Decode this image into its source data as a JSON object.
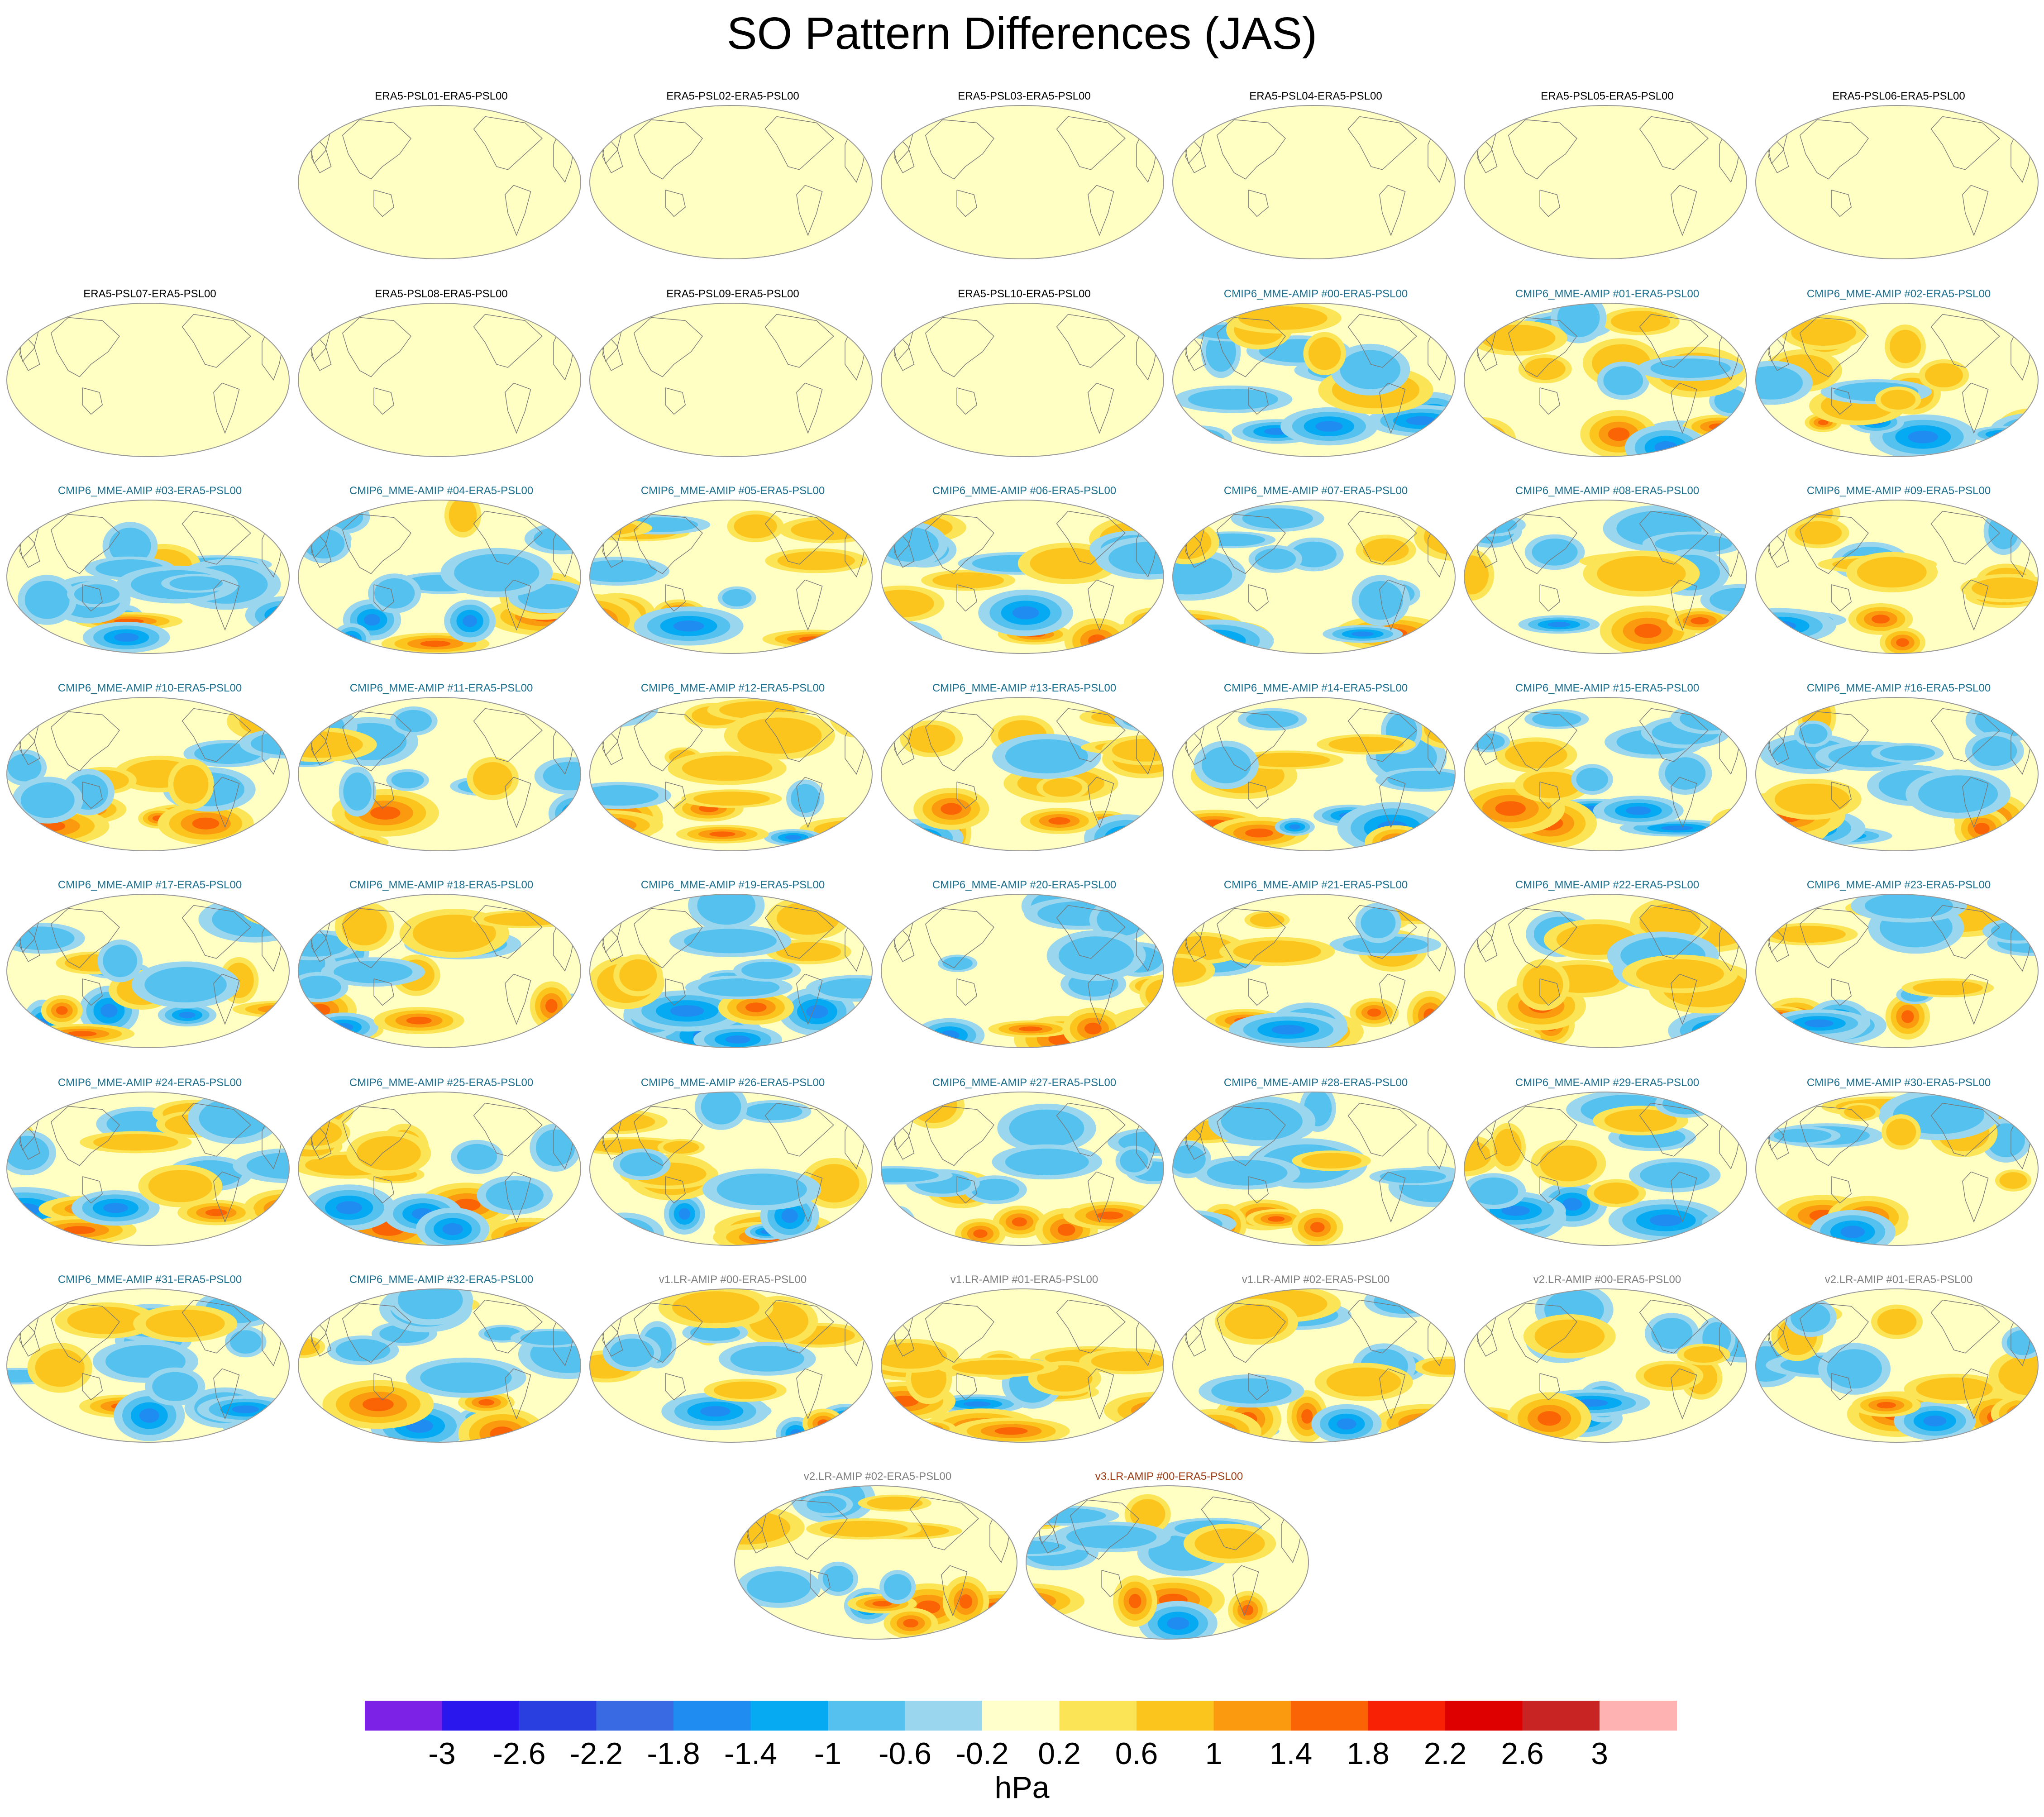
{
  "title": "SO Pattern Differences (JAS)",
  "units": "hPa",
  "colors": {
    "land_outline": "#777777",
    "map_edge": "#999999",
    "neutral_fill": "#ffffc4",
    "title_era5": "#000000",
    "title_cmip6": "#1a6e8e",
    "title_v1": "#7f7f7f",
    "title_v2": "#7f7f7f",
    "title_v3": "#9a3b12"
  },
  "colorbar": {
    "colors": [
      "#7b22e6",
      "#2a17ee",
      "#2a3fe0",
      "#3a6ae3",
      "#1f8cf2",
      "#05aaf2",
      "#55c1ee",
      "#9bd6ef",
      "#ffffcc",
      "#fce457",
      "#fbc51d",
      "#fc9a0f",
      "#fb6404",
      "#f82005",
      "#de0001",
      "#c82424",
      "#ffb2b2"
    ],
    "labels": [
      "-3",
      "-2.6",
      "-2.2",
      "-1.8",
      "-1.4",
      "-1",
      "-0.6",
      "-0.2",
      "0.2",
      "0.6",
      "1",
      "1.4",
      "1.8",
      "2.2",
      "2.6",
      "3"
    ]
  },
  "panels": [
    {
      "title": "ERA5-PSL01-ERA5-PSL00",
      "group": "era5"
    },
    {
      "title": "ERA5-PSL02-ERA5-PSL00",
      "group": "era5"
    },
    {
      "title": "ERA5-PSL03-ERA5-PSL00",
      "group": "era5"
    },
    {
      "title": "ERA5-PSL04-ERA5-PSL00",
      "group": "era5"
    },
    {
      "title": "ERA5-PSL05-ERA5-PSL00",
      "group": "era5"
    },
    {
      "title": "ERA5-PSL06-ERA5-PSL00",
      "group": "era5"
    },
    {
      "title": "ERA5-PSL07-ERA5-PSL00",
      "group": "era5"
    },
    {
      "title": "ERA5-PSL08-ERA5-PSL00",
      "group": "era5"
    },
    {
      "title": "ERA5-PSL09-ERA5-PSL00",
      "group": "era5"
    },
    {
      "title": "ERA5-PSL10-ERA5-PSL00",
      "group": "era5"
    },
    {
      "title": "CMIP6_MME-AMIP  #00-ERA5-PSL00",
      "group": "cmip6"
    },
    {
      "title": "CMIP6_MME-AMIP  #01-ERA5-PSL00",
      "group": "cmip6"
    },
    {
      "title": "CMIP6_MME-AMIP  #02-ERA5-PSL00",
      "group": "cmip6"
    },
    {
      "title": "CMIP6_MME-AMIP  #03-ERA5-PSL00",
      "group": "cmip6"
    },
    {
      "title": "CMIP6_MME-AMIP  #04-ERA5-PSL00",
      "group": "cmip6"
    },
    {
      "title": "CMIP6_MME-AMIP  #05-ERA5-PSL00",
      "group": "cmip6"
    },
    {
      "title": "CMIP6_MME-AMIP  #06-ERA5-PSL00",
      "group": "cmip6"
    },
    {
      "title": "CMIP6_MME-AMIP  #07-ERA5-PSL00",
      "group": "cmip6"
    },
    {
      "title": "CMIP6_MME-AMIP  #08-ERA5-PSL00",
      "group": "cmip6"
    },
    {
      "title": "CMIP6_MME-AMIP  #09-ERA5-PSL00",
      "group": "cmip6"
    },
    {
      "title": "CMIP6_MME-AMIP  #10-ERA5-PSL00",
      "group": "cmip6"
    },
    {
      "title": "CMIP6_MME-AMIP  #11-ERA5-PSL00",
      "group": "cmip6"
    },
    {
      "title": "CMIP6_MME-AMIP  #12-ERA5-PSL00",
      "group": "cmip6"
    },
    {
      "title": "CMIP6_MME-AMIP  #13-ERA5-PSL00",
      "group": "cmip6"
    },
    {
      "title": "CMIP6_MME-AMIP  #14-ERA5-PSL00",
      "group": "cmip6"
    },
    {
      "title": "CMIP6_MME-AMIP  #15-ERA5-PSL00",
      "group": "cmip6"
    },
    {
      "title": "CMIP6_MME-AMIP  #16-ERA5-PSL00",
      "group": "cmip6"
    },
    {
      "title": "CMIP6_MME-AMIP  #17-ERA5-PSL00",
      "group": "cmip6"
    },
    {
      "title": "CMIP6_MME-AMIP  #18-ERA5-PSL00",
      "group": "cmip6"
    },
    {
      "title": "CMIP6_MME-AMIP  #19-ERA5-PSL00",
      "group": "cmip6"
    },
    {
      "title": "CMIP6_MME-AMIP  #20-ERA5-PSL00",
      "group": "cmip6"
    },
    {
      "title": "CMIP6_MME-AMIP  #21-ERA5-PSL00",
      "group": "cmip6"
    },
    {
      "title": "CMIP6_MME-AMIP  #22-ERA5-PSL00",
      "group": "cmip6"
    },
    {
      "title": "CMIP6_MME-AMIP  #23-ERA5-PSL00",
      "group": "cmip6"
    },
    {
      "title": "CMIP6_MME-AMIP  #24-ERA5-PSL00",
      "group": "cmip6"
    },
    {
      "title": "CMIP6_MME-AMIP  #25-ERA5-PSL00",
      "group": "cmip6"
    },
    {
      "title": "CMIP6_MME-AMIP  #26-ERA5-PSL00",
      "group": "cmip6"
    },
    {
      "title": "CMIP6_MME-AMIP  #27-ERA5-PSL00",
      "group": "cmip6"
    },
    {
      "title": "CMIP6_MME-AMIP  #28-ERA5-PSL00",
      "group": "cmip6"
    },
    {
      "title": "CMIP6_MME-AMIP  #29-ERA5-PSL00",
      "group": "cmip6"
    },
    {
      "title": "CMIP6_MME-AMIP  #30-ERA5-PSL00",
      "group": "cmip6"
    },
    {
      "title": "CMIP6_MME-AMIP  #31-ERA5-PSL00",
      "group": "cmip6"
    },
    {
      "title": "CMIP6_MME-AMIP  #32-ERA5-PSL00",
      "group": "cmip6"
    },
    {
      "title": "v1.LR-AMIP  #00-ERA5-PSL00",
      "group": "v1"
    },
    {
      "title": "v1.LR-AMIP  #01-ERA5-PSL00",
      "group": "v1"
    },
    {
      "title": "v1.LR-AMIP  #02-ERA5-PSL00",
      "group": "v1"
    },
    {
      "title": "v2.LR-AMIP  #00-ERA5-PSL00",
      "group": "v2"
    },
    {
      "title": "v2.LR-AMIP  #01-ERA5-PSL00",
      "group": "v2"
    },
    {
      "title": "v2.LR-AMIP  #02-ERA5-PSL00",
      "group": "v2"
    },
    {
      "title": "v3.LR-AMIP  #00-ERA5-PSL00",
      "group": "v3"
    }
  ]
}
